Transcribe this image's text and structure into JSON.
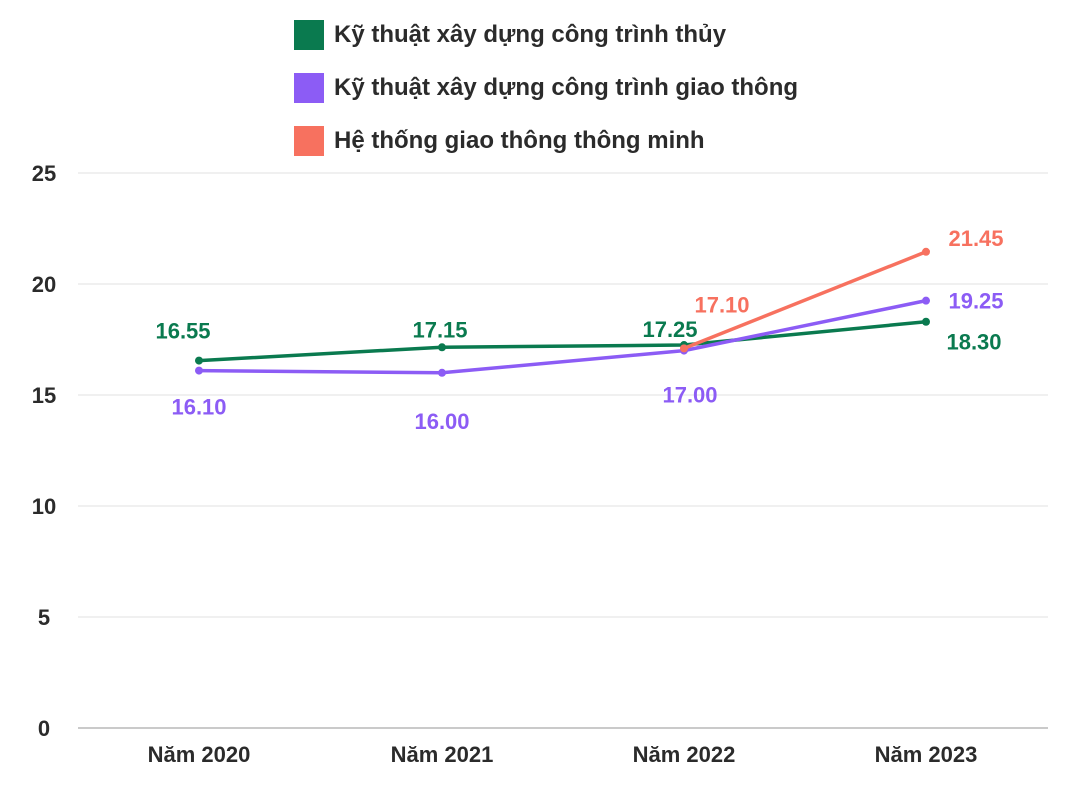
{
  "chart_data": {
    "type": "line",
    "categories": [
      "Năm 2020",
      "Năm 2021",
      "Năm 2022",
      "Năm 2023"
    ],
    "ylim": [
      0,
      25
    ],
    "yticks": [
      0,
      5,
      10,
      15,
      20,
      25
    ],
    "grid": true,
    "legend_position": "top",
    "series": [
      {
        "name": "Kỹ thuật xây dựng công trình thủy",
        "color": "#0a7a4f",
        "values": [
          16.55,
          17.15,
          17.25,
          18.3
        ],
        "labels": [
          "16.55",
          "17.15",
          "17.25",
          "18.30"
        ]
      },
      {
        "name": "Kỹ thuật xây dựng công trình giao thông",
        "color": "#8c5cf5",
        "values": [
          16.1,
          16.0,
          17.0,
          19.25
        ],
        "labels": [
          "16.10",
          "16.00",
          "17.00",
          "19.25"
        ]
      },
      {
        "name": "Hệ thống giao thông thông minh",
        "color": "#f7715f",
        "values": [
          null,
          null,
          17.1,
          21.45
        ],
        "labels": [
          null,
          null,
          "17.10",
          "21.45"
        ]
      }
    ]
  }
}
